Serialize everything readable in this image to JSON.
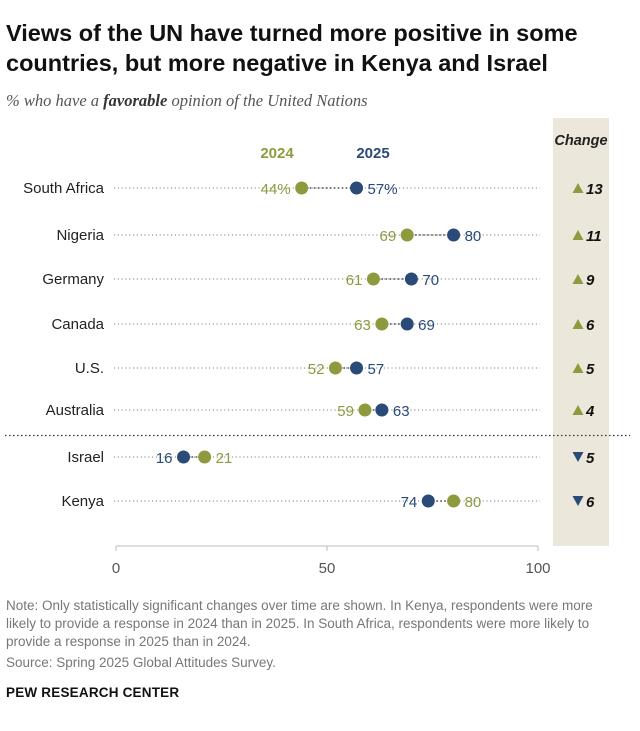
{
  "header": {
    "title": "Views of the UN have turned more positive in some countries, but more negative in Kenya and Israel",
    "subtitle_prefix": "% who have a ",
    "subtitle_emphasis": "favorable",
    "subtitle_suffix": " opinion of the United Nations"
  },
  "chart_data": {
    "type": "dot-plot",
    "categories": [
      "South Africa",
      "Nigeria",
      "Germany",
      "Canada",
      "U.S.",
      "Australia",
      "Israel",
      "Kenya"
    ],
    "series": [
      {
        "name": "2024",
        "color": "#8f9a3f",
        "values": [
          44,
          69,
          61,
          63,
          52,
          59,
          21,
          80
        ]
      },
      {
        "name": "2025",
        "color": "#2a4a78",
        "values": [
          57,
          80,
          70,
          69,
          57,
          63,
          16,
          74
        ]
      }
    ],
    "value_labels": {
      "2024": [
        "44%",
        "69",
        "61",
        "63",
        "52",
        "59",
        "21",
        "80"
      ],
      "2025": [
        "57%",
        "80",
        "70",
        "69",
        "57",
        "63",
        "16",
        "74"
      ]
    },
    "change_header": "Change",
    "change_values": [
      "13",
      "11",
      "9",
      "6",
      "5",
      "4",
      "5",
      "6"
    ],
    "change_direction": [
      "up",
      "up",
      "up",
      "up",
      "up",
      "up",
      "down",
      "down"
    ],
    "change_up_color": "#8f9a3f",
    "change_down_color": "#2a4a78",
    "change_panel_color": "#ebe8db",
    "xlim": [
      0,
      100
    ],
    "xticks": [
      0,
      50,
      100
    ],
    "xticklabels": [
      "0",
      "50",
      "100"
    ],
    "group_divider_after_index": 5
  },
  "footer": {
    "note": "Note: Only statistically significant changes over time are shown. In Kenya, respondents were more likely to provide a response in 2024 than in 2025. In South Africa, respondents were more likely to provide a response in 2025 than in 2024.",
    "source": "Source: Spring 2025 Global Attitudes Survey.",
    "brand": "PEW RESEARCH CENTER"
  }
}
